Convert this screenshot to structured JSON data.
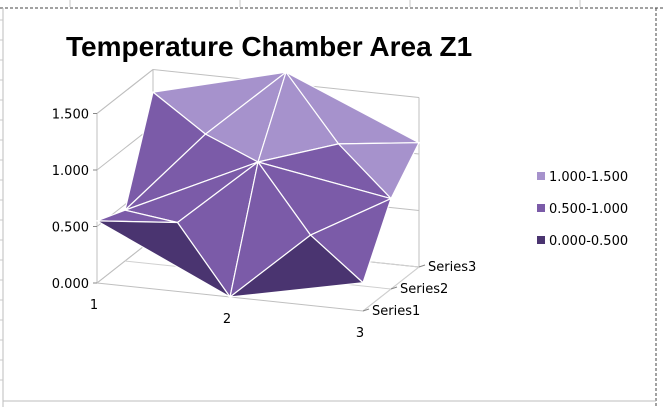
{
  "chart_data": {
    "type": "surface",
    "title": "Temperature Chamber Area Z1",
    "xlabel": "",
    "ylabel": "",
    "zlim": [
      0,
      1.5
    ],
    "z_ticks": [
      "0.000",
      "0.500",
      "1.000",
      "1.500"
    ],
    "categories": [
      "1",
      "2",
      "3"
    ],
    "series_names": [
      "Series1",
      "Series2",
      "Series3"
    ],
    "series": [
      {
        "name": "Series1",
        "values": [
          0.55,
          0.0,
          0.25
        ]
      },
      {
        "name": "Series2",
        "values": [
          0.45,
          1.0,
          0.8
        ]
      },
      {
        "name": "Series3",
        "values": [
          1.3,
          1.6,
          1.1
        ]
      }
    ],
    "legend": [
      {
        "label": "1.000-1.500",
        "color": "#a692cc"
      },
      {
        "label": "0.500-1.000",
        "color": "#7b5ba8"
      },
      {
        "label": "0.000-0.500",
        "color": "#4a3470"
      }
    ],
    "legend_position": "right",
    "grid": true
  }
}
